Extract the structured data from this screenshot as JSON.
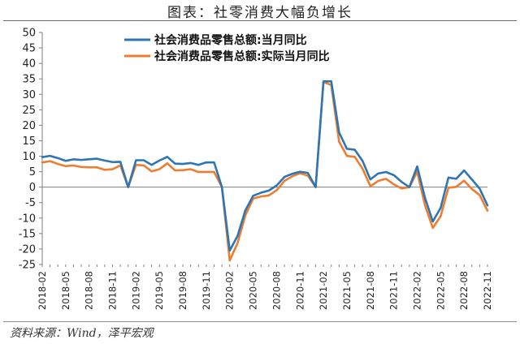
{
  "header": {
    "title": "图表：社零消费大幅负增长"
  },
  "footer": {
    "source": "资料来源：Wind，泽平宏观"
  },
  "colors": {
    "series1": "#2E75B6",
    "series2": "#ED7D31"
  },
  "chart_data": {
    "type": "line",
    "title": "图表：社零消费大幅负增长",
    "ylim": [
      -25,
      50
    ],
    "yticks": [
      50,
      45,
      40,
      35,
      30,
      25,
      20,
      15,
      10,
      5,
      0,
      -5,
      -10,
      -15,
      -20,
      -25
    ],
    "xtick_labels": [
      "2018-02",
      "2018-05",
      "2018-08",
      "2018-11",
      "2019-02",
      "2019-05",
      "2019-08",
      "2019-11",
      "2020-02",
      "2020-05",
      "2020-08",
      "2020-11",
      "2021-02",
      "2021-05",
      "2021-08",
      "2021-11",
      "2022-02",
      "2022-05",
      "2022-08",
      "2022-11"
    ],
    "x": [
      "2018-02",
      "2018-03",
      "2018-04",
      "2018-05",
      "2018-06",
      "2018-07",
      "2018-08",
      "2018-09",
      "2018-10",
      "2018-11",
      "2018-12",
      "2019-01",
      "2019-02",
      "2019-03",
      "2019-04",
      "2019-05",
      "2019-06",
      "2019-07",
      "2019-08",
      "2019-09",
      "2019-10",
      "2019-11",
      "2019-12",
      "2020-01",
      "2020-02",
      "2020-03",
      "2020-04",
      "2020-05",
      "2020-06",
      "2020-07",
      "2020-08",
      "2020-09",
      "2020-10",
      "2020-11",
      "2020-12",
      "2021-01",
      "2021-02",
      "2021-03",
      "2021-04",
      "2021-05",
      "2021-06",
      "2021-07",
      "2021-08",
      "2021-09",
      "2021-10",
      "2021-11",
      "2021-12",
      "2022-01",
      "2022-02",
      "2022-03",
      "2022-04",
      "2022-05",
      "2022-06",
      "2022-07",
      "2022-08",
      "2022-09",
      "2022-10",
      "2022-11"
    ],
    "series": [
      {
        "name": "社会消费品零售总额:当月同比",
        "color": "#2E75B6",
        "values": [
          9.7,
          10.1,
          9.4,
          8.5,
          9.0,
          8.8,
          9.0,
          9.2,
          8.6,
          8.1,
          8.2,
          0,
          8.7,
          8.7,
          7.2,
          8.6,
          9.8,
          7.6,
          7.5,
          7.8,
          7.2,
          8.0,
          8.0,
          0,
          -20.5,
          -15.8,
          -7.5,
          -2.8,
          -1.8,
          -1.1,
          0.5,
          3.3,
          4.3,
          5.0,
          4.6,
          0,
          34.2,
          34.2,
          17.7,
          12.4,
          12.1,
          8.5,
          2.5,
          4.4,
          4.9,
          3.9,
          1.7,
          0,
          6.7,
          -3.5,
          -11.1,
          -6.7,
          3.1,
          2.7,
          5.4,
          2.5,
          -0.5,
          -5.9
        ]
      },
      {
        "name": "社会消费品零售总额:实际当月同比",
        "color": "#ED7D31",
        "values": [
          8.0,
          8.4,
          7.5,
          6.8,
          7.0,
          6.5,
          6.4,
          6.4,
          5.6,
          5.8,
          7.0,
          0,
          7.2,
          7.0,
          5.1,
          5.8,
          7.7,
          5.4,
          5.5,
          5.8,
          4.9,
          4.9,
          4.9,
          0,
          -23.7,
          -18.1,
          -9.1,
          -3.7,
          -3.0,
          -2.7,
          -1.0,
          2.0,
          3.5,
          4.5,
          3.7,
          0,
          34.0,
          33.0,
          14.7,
          10.1,
          9.8,
          6.0,
          0.3,
          2.0,
          2.7,
          0.9,
          -0.4,
          0,
          5.0,
          -5.9,
          -13.2,
          -9.4,
          -0.2,
          0.1,
          2.1,
          -0.6,
          -2.6,
          -7.6
        ]
      }
    ]
  }
}
